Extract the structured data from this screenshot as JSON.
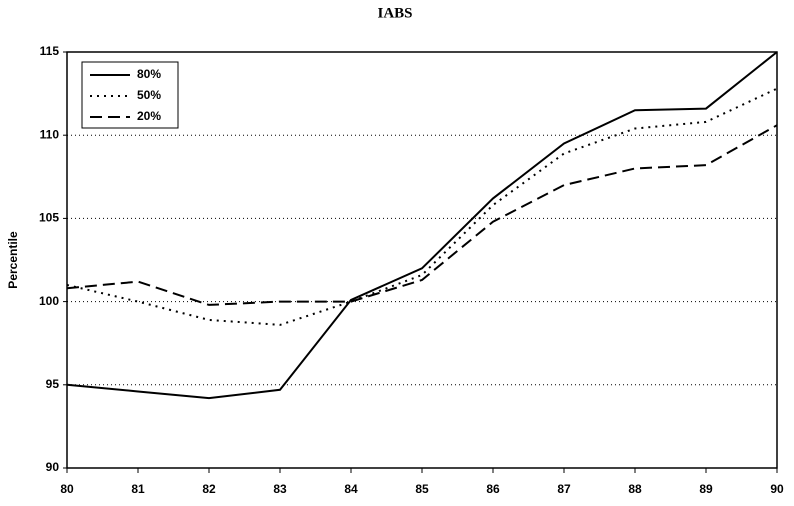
{
  "chart_data": {
    "type": "line",
    "title": "IABS",
    "y_label": "Percentile",
    "x": [
      80,
      81,
      82,
      83,
      84,
      85,
      86,
      87,
      88,
      89,
      90
    ],
    "xlim": [
      80,
      90
    ],
    "xticks": [
      80,
      81,
      82,
      83,
      84,
      85,
      86,
      87,
      88,
      89,
      90
    ],
    "ylim": [
      90,
      115
    ],
    "yticks": [
      90,
      95,
      100,
      105,
      110,
      115
    ],
    "grid": true,
    "legend": "upper left",
    "series": [
      {
        "name": "80%",
        "color": "#000000",
        "style": "solid",
        "values": [
          95.0,
          94.6,
          94.2,
          94.7,
          100.1,
          102.0,
          106.2,
          109.5,
          111.5,
          111.6,
          115.0
        ]
      },
      {
        "name": "50%",
        "color": "#000000",
        "style": "dotted",
        "values": [
          101.0,
          100.0,
          98.9,
          98.6,
          100.0,
          101.6,
          105.8,
          108.9,
          110.4,
          110.8,
          112.8
        ]
      },
      {
        "name": "20%",
        "color": "#000000",
        "style": "dashed",
        "values": [
          100.8,
          101.2,
          99.8,
          100.0,
          100.0,
          101.3,
          104.8,
          107.0,
          108.0,
          108.2,
          110.6
        ]
      }
    ]
  }
}
